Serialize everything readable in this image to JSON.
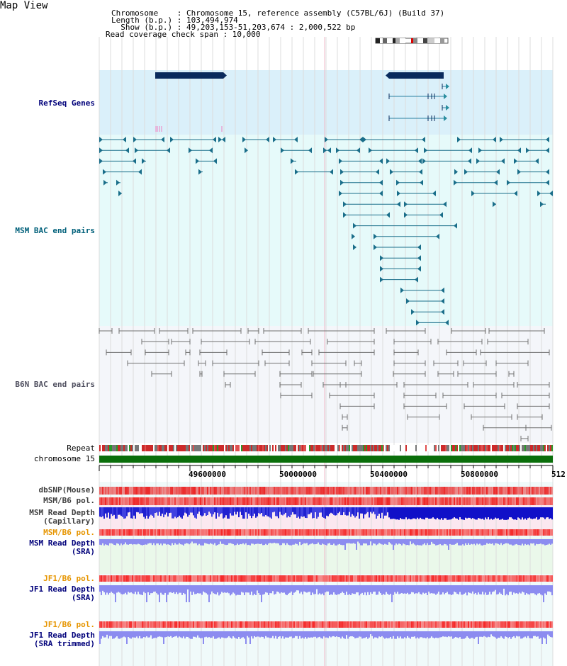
{
  "view_title": "Map View",
  "header": {
    "lines": [
      "Chromosome    : Chromosome 15, reference assembly (C57BL/6J) (Build 37)",
      "Length (b.p.) : 103,494,974",
      "  Show (b.p.) : 49,203,153-51,203,674 : 2,000,522 bp",
      "Read coverage check span : 10,000"
    ]
  },
  "tracks": {
    "refseq": "RefSeq Genes",
    "msm_bac": "MSM BAC end pairs",
    "b6n_bac": "B6N BAC end pairs",
    "repeat": "Repeat",
    "chromosome": "chromosome 15",
    "dbsnp": "dbSNP(Mouse)",
    "msm_b6_pol_1": "MSM/B6 pol.",
    "msm_read_depth_cap": "MSM Read Depth\n(Capillary)",
    "msm_b6_pol_2": "MSM/B6 pol.",
    "msm_read_depth_sra": "MSM Read Depth\n(SRA)",
    "jf1_b6_pol_1": "JF1/B6 pol.",
    "jf1_read_depth_sra": "JF1 Read Depth\n(SRA)",
    "jf1_b6_pol_2": "JF1/B6 pol.",
    "jf1_read_depth_trim": "JF1 Read Depth\n(SRA trimmed)"
  },
  "axis": {
    "ticks": [
      "49600000",
      "50000000",
      "50400000",
      "50800000",
      "512"
    ]
  },
  "colors": {
    "gene": "#0a2a5c",
    "msm_pair": "#1a6e8a",
    "b6n_pair": "#707070",
    "chrom_bar": "#0a6e0a",
    "depth_blue": "#1010d0",
    "depth_light": "#8c8cf0",
    "pol_red": "#e83030",
    "label_blue": "#00007a",
    "label_orange": "#e69500"
  }
}
